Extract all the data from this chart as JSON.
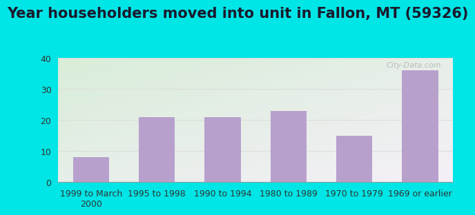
{
  "title": "Year householders moved into unit in Fallon, MT (59326)",
  "categories": [
    "1999 to March\n2000",
    "1995 to 1998",
    "1990 to 1994",
    "1980 to 1989",
    "1970 to 1979",
    "1969 or earlier"
  ],
  "values": [
    8,
    21,
    21,
    23,
    15,
    36
  ],
  "bar_color": "#b8a0cc",
  "ylim": [
    0,
    40
  ],
  "yticks": [
    0,
    10,
    20,
    30,
    40
  ],
  "background_outer": "#00e5e5",
  "bg_top_left": "#d8edd8",
  "bg_bottom_right": "#f5f0f8",
  "grid_color": "#dddddd",
  "title_fontsize": 15,
  "tick_fontsize": 9,
  "watermark": "City-Data.com"
}
